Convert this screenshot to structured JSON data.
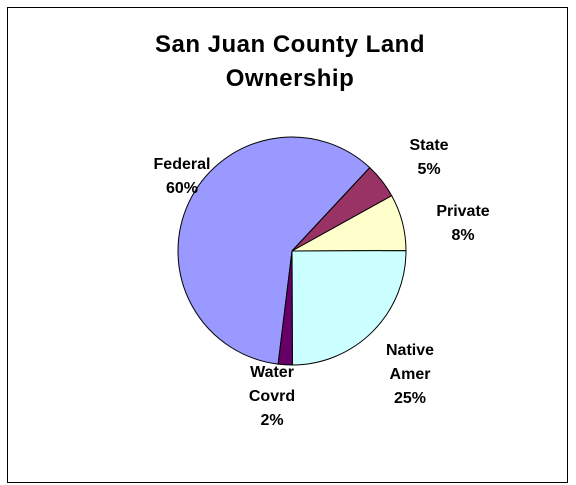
{
  "chart_data": {
    "type": "pie",
    "title": "San Juan County Land Ownership",
    "title_lines": [
      "San Juan County Land",
      "Ownership"
    ],
    "legend": "none",
    "slices": [
      {
        "label": "Federal",
        "label_lines": [
          "Federal"
        ],
        "value": 60,
        "value_label": "60%",
        "color": "#9999ff"
      },
      {
        "label": "State",
        "label_lines": [
          "State"
        ],
        "value": 5,
        "value_label": "5%",
        "color": "#993366"
      },
      {
        "label": "Private",
        "label_lines": [
          "Private"
        ],
        "value": 8,
        "value_label": "8%",
        "color": "#ffffcc"
      },
      {
        "label": "Native Amer",
        "label_lines": [
          "Native",
          "Amer"
        ],
        "value": 25,
        "value_label": "25%",
        "color": "#ccffff"
      },
      {
        "label": "Water Covrd",
        "label_lines": [
          "Water",
          "Covrd"
        ],
        "value": 2,
        "value_label": "2%",
        "color": "#660066"
      }
    ]
  }
}
